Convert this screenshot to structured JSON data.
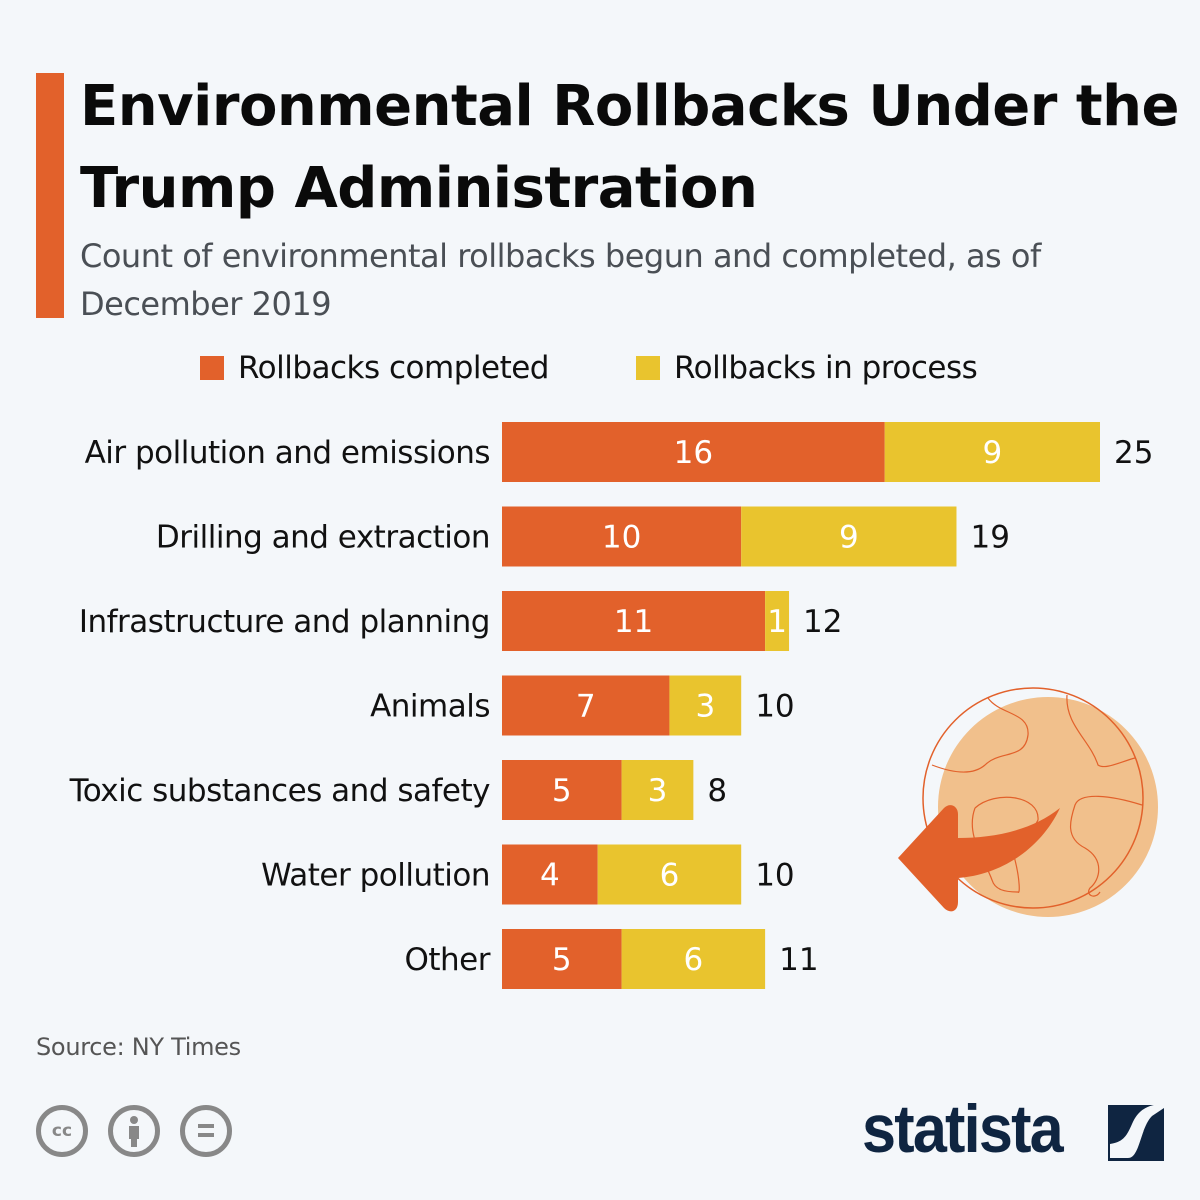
{
  "header": {
    "title": "Environmental Rollbacks Under the Trump Administration",
    "subtitle": "Count of environmental rollbacks begun and completed, as of December 2019"
  },
  "legend": [
    {
      "label": "Rollbacks completed",
      "color": "#e2612b"
    },
    {
      "label": "Rollbacks in process",
      "color": "#e9c42e"
    }
  ],
  "chart_data": {
    "type": "bar",
    "orientation": "horizontal",
    "stacked": true,
    "title": "Environmental Rollbacks Under the Trump Administration",
    "subtitle": "Count of environmental rollbacks begun and completed, as of December 2019",
    "categories": [
      "Air pollution and emissions",
      "Drilling and extraction",
      "Infrastructure and planning",
      "Animals",
      "Toxic substances and safety",
      "Water pollution",
      "Other"
    ],
    "series": [
      {
        "name": "Rollbacks completed",
        "color": "#e2612b",
        "values": [
          16,
          10,
          11,
          7,
          5,
          4,
          5
        ]
      },
      {
        "name": "Rollbacks in process",
        "color": "#e9c42e",
        "values": [
          9,
          9,
          1,
          3,
          3,
          6,
          6
        ]
      }
    ],
    "totals": [
      25,
      19,
      12,
      10,
      8,
      10,
      11
    ],
    "xlim": [
      0,
      25
    ],
    "grid": false,
    "legend_position": "top",
    "xlabel": "",
    "ylabel": ""
  },
  "footer": {
    "source": "Source: NY Times",
    "license_icons": [
      "cc-icon",
      "attribution-icon",
      "no-derivatives-icon"
    ],
    "brand": "statista"
  }
}
